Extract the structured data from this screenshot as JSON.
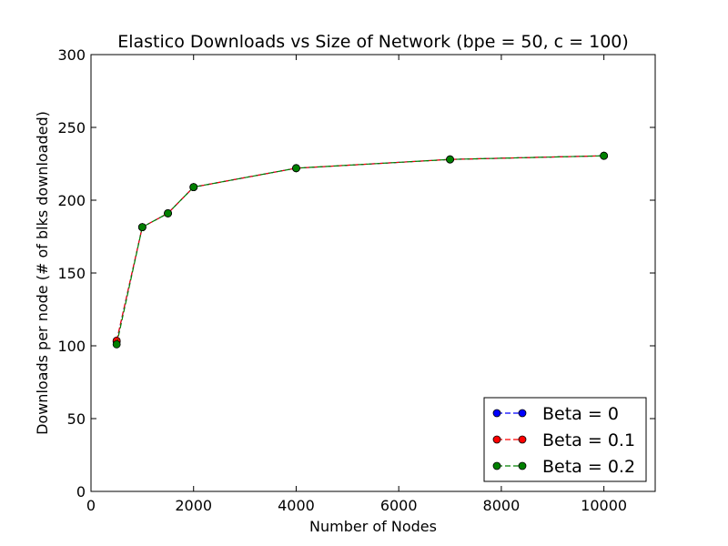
{
  "chart_data": {
    "type": "line",
    "title": "Elastico Downloads vs Size of Network (bpe = 50, c = 100)",
    "xlabel": "Number of Nodes",
    "ylabel": "Downloads per node (# of blks downloaded)",
    "xlim": [
      0,
      11000
    ],
    "ylim": [
      0,
      300
    ],
    "xticks": [
      0,
      2000,
      4000,
      6000,
      8000,
      10000
    ],
    "yticks": [
      0,
      50,
      100,
      150,
      200,
      250,
      300
    ],
    "grid": false,
    "legend_position": "bottom-right",
    "x": [
      500,
      1000,
      1500,
      2000,
      4000,
      7000,
      10000
    ],
    "series": [
      {
        "name": "Beta = 0",
        "color": "#0000ff",
        "marker": "circle",
        "linestyle": "dashed",
        "values": [
          103,
          181.5,
          191,
          209,
          222,
          228,
          230.5
        ]
      },
      {
        "name": "Beta = 0.1",
        "color": "#ff0000",
        "marker": "circle",
        "linestyle": "dashed",
        "values": [
          103.5,
          181.5,
          191,
          209,
          222,
          228,
          230.5
        ]
      },
      {
        "name": "Beta = 0.2",
        "color": "#008000",
        "marker": "circle",
        "linestyle": "dashed",
        "values": [
          101,
          181.5,
          191,
          209,
          222,
          228,
          230.5
        ]
      }
    ]
  }
}
